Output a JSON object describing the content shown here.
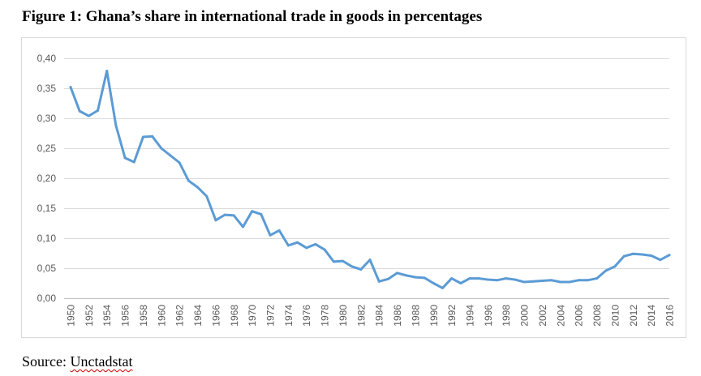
{
  "title": "Figure 1: Ghana’s share in international trade in goods in percentages",
  "source_prefix": "Source: ",
  "source_name": "Unctadstat",
  "chart_data": {
    "type": "line",
    "title": "",
    "xlabel": "",
    "ylabel": "",
    "ylim": [
      0,
      0.4
    ],
    "yticks": [
      0,
      0.05,
      0.1,
      0.15,
      0.2,
      0.25,
      0.3,
      0.35,
      0.4
    ],
    "ytick_labels": [
      "0,00",
      "0,05",
      "0,10",
      "0,15",
      "0,20",
      "0,25",
      "0,30",
      "0,35",
      "0,40"
    ],
    "x": [
      1950,
      1951,
      1952,
      1953,
      1954,
      1955,
      1956,
      1957,
      1958,
      1959,
      1960,
      1961,
      1962,
      1963,
      1964,
      1965,
      1966,
      1967,
      1968,
      1969,
      1970,
      1971,
      1972,
      1973,
      1974,
      1975,
      1976,
      1977,
      1978,
      1979,
      1980,
      1981,
      1982,
      1983,
      1984,
      1985,
      1986,
      1987,
      1988,
      1989,
      1990,
      1991,
      1992,
      1993,
      1994,
      1995,
      1996,
      1997,
      1998,
      1999,
      2000,
      2001,
      2002,
      2003,
      2004,
      2005,
      2006,
      2007,
      2008,
      2009,
      2010,
      2011,
      2012,
      2013,
      2014,
      2015,
      2016
    ],
    "xtick_labels": [
      "1950",
      "1952",
      "1954",
      "1956",
      "1958",
      "1960",
      "1962",
      "1964",
      "1966",
      "1968",
      "1970",
      "1972",
      "1974",
      "1976",
      "1978",
      "1980",
      "1982",
      "1984",
      "1986",
      "1988",
      "1990",
      "1992",
      "1994",
      "1996",
      "1998",
      "2000",
      "2002",
      "2004",
      "2006",
      "2008",
      "2010",
      "2012",
      "2014",
      "2016"
    ],
    "series": [
      {
        "color": "#5b9bd5",
        "values": [
          0.352,
          0.312,
          0.304,
          0.313,
          0.379,
          0.288,
          0.234,
          0.227,
          0.269,
          0.27,
          0.25,
          0.238,
          0.226,
          0.196,
          0.185,
          0.17,
          0.13,
          0.139,
          0.138,
          0.119,
          0.145,
          0.14,
          0.105,
          0.113,
          0.088,
          0.093,
          0.084,
          0.09,
          0.081,
          0.061,
          0.062,
          0.053,
          0.048,
          0.064,
          0.028,
          0.032,
          0.042,
          0.038,
          0.035,
          0.034,
          0.025,
          0.017,
          0.033,
          0.025,
          0.033,
          0.033,
          0.031,
          0.03,
          0.033,
          0.031,
          0.027,
          0.028,
          0.029,
          0.03,
          0.027,
          0.027,
          0.03,
          0.03,
          0.033,
          0.046,
          0.053,
          0.07,
          0.074,
          0.073,
          0.071,
          0.064,
          0.072
        ]
      }
    ],
    "grid": true,
    "legend": "none"
  }
}
